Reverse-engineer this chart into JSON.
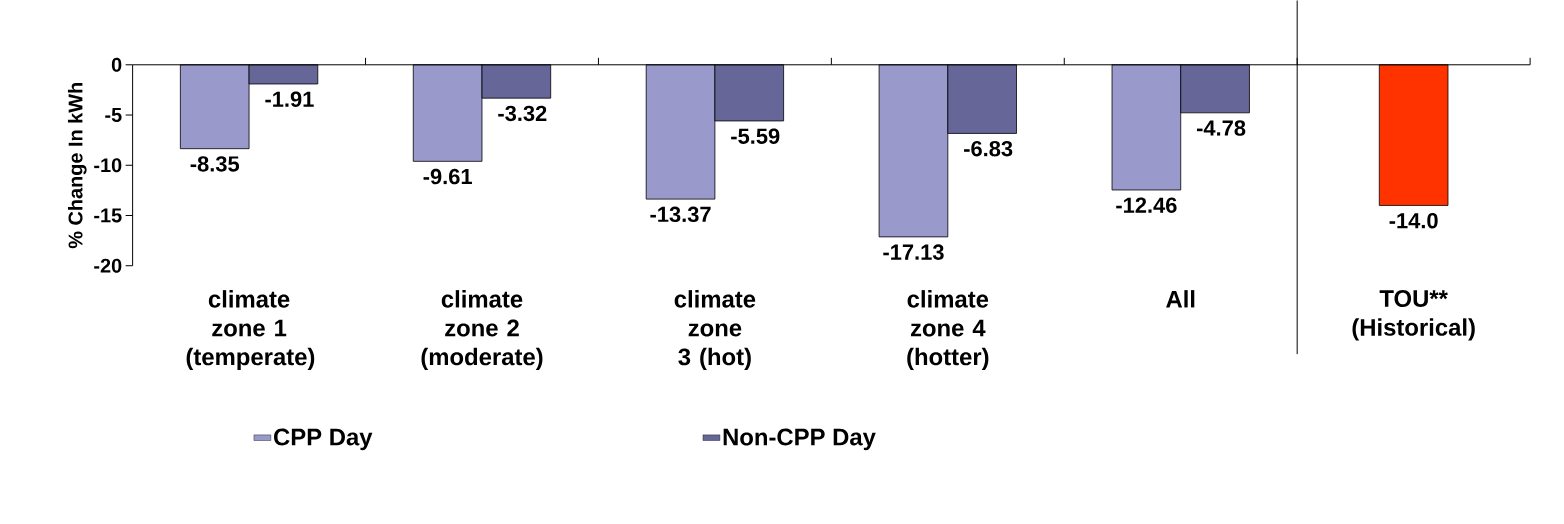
{
  "chart_data": {
    "type": "bar",
    "ylabel": "% Change In kWh",
    "categories": [
      "climate zone 1 (temperate)",
      "climate zone 2 (moderate)",
      "climate zone 3 (hot)",
      "climate zone 4 (hotter)",
      "All",
      "TOU** (Historical)"
    ],
    "series": [
      {
        "name": "CPP Day",
        "color": "#9999cc",
        "values": [
          -8.35,
          -9.61,
          -13.37,
          -17.13,
          -12.46,
          null
        ],
        "value_labels": [
          "-8.35",
          "-9.61",
          "-13.37",
          "-17.13",
          "-12.46",
          null
        ]
      },
      {
        "name": "Non-CPP Day",
        "color": "#666699",
        "values": [
          -1.91,
          -3.32,
          -5.59,
          -6.83,
          -4.78,
          null
        ],
        "value_labels": [
          "-1.91",
          "-3.32",
          "-5.59",
          "-6.83",
          "-4.78",
          null
        ]
      },
      {
        "color": "#ff3300",
        "values": [
          null,
          null,
          null,
          null,
          null,
          -14.0
        ],
        "value_labels": [
          null,
          null,
          null,
          null,
          null,
          "-14.0"
        ]
      }
    ],
    "ylim": [
      -20,
      0
    ],
    "yticks": [
      -20,
      -15,
      -10,
      -5,
      0
    ],
    "legend": "bottom"
  }
}
